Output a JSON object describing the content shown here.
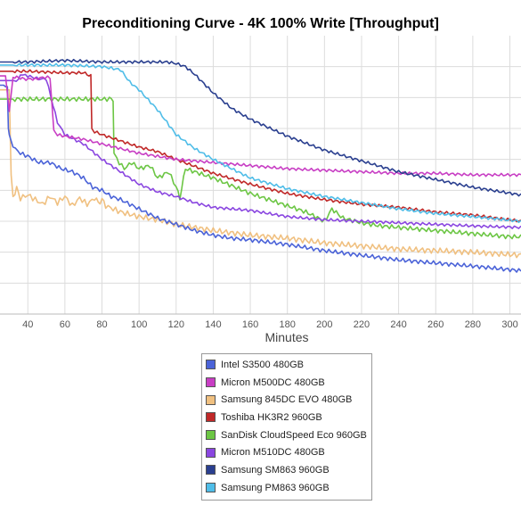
{
  "chart_data": {
    "type": "line",
    "title": "Preconditioning Curve - 4K 100% Write [Throughput]",
    "xlabel": "Minutes",
    "ylabel": "",
    "xlim": [
      25,
      306
    ],
    "ylim": [
      0,
      90000
    ],
    "x_ticks": [
      40,
      60,
      80,
      100,
      120,
      140,
      160,
      180,
      200,
      220,
      240,
      260,
      280,
      300
    ],
    "y_ticks": [
      10000,
      20000,
      30000,
      40000,
      50000,
      60000,
      70000,
      80000
    ],
    "grid": true,
    "legend_position": "bottom-center",
    "series": [
      {
        "name": "Intel S3500 480GB",
        "color": "#4b63d8",
        "x": [
          25,
          27,
          28,
          29,
          29.5,
          30,
          32,
          36,
          40,
          46,
          52,
          58,
          64,
          70,
          75,
          80,
          85,
          90,
          100,
          110,
          120,
          130,
          140,
          150,
          160,
          180,
          200,
          220,
          240,
          260,
          280,
          306
        ],
        "y": [
          74000,
          74000,
          73500,
          73500,
          60000,
          58000,
          54000,
          52000,
          51000,
          49000,
          49000,
          47000,
          46000,
          44000,
          41000,
          40000,
          38000,
          37000,
          34000,
          31000,
          29000,
          27000,
          25500,
          24500,
          24000,
          22500,
          20500,
          19000,
          17500,
          16500,
          15500,
          14000
        ]
      },
      {
        "name": "Micron M500DC 480GB",
        "color": "#c83ec4",
        "x": [
          25,
          28,
          30,
          32,
          35,
          38,
          40,
          44,
          48,
          52,
          54,
          56,
          60,
          70,
          80,
          90,
          100,
          110,
          120,
          140,
          160,
          180,
          200,
          220,
          240,
          260,
          280,
          306
        ],
        "y": [
          77000,
          77000,
          65500,
          76500,
          76500,
          76000,
          76000,
          76000,
          76500,
          76500,
          59500,
          58000,
          57500,
          56500,
          55000,
          53500,
          52000,
          51000,
          50000,
          49000,
          48000,
          47000,
          46500,
          46000,
          45500,
          45500,
          45000,
          45000
        ]
      },
      {
        "name": "Samsung 845DC EVO 480GB",
        "color": "#f0c080",
        "x": [
          25,
          28,
          30,
          31,
          32,
          34,
          36,
          40,
          44,
          48,
          52,
          56,
          60,
          64,
          68,
          72,
          76,
          78,
          80,
          82,
          86,
          90,
          100,
          110,
          120,
          140,
          160,
          180,
          200,
          220,
          240,
          260,
          280,
          306
        ],
        "y": [
          72500,
          72500,
          72500,
          45000,
          38000,
          40500,
          37500,
          38500,
          37000,
          35500,
          38000,
          36000,
          38000,
          35000,
          37500,
          35500,
          37500,
          36000,
          37000,
          35000,
          34000,
          33000,
          31500,
          30500,
          29000,
          27000,
          25500,
          24500,
          23000,
          22000,
          21000,
          20500,
          20000,
          19000
        ]
      },
      {
        "name": "Toshiba HK3R2 960GB",
        "color": "#c02828",
        "x": [
          25,
          40,
          60,
          70,
          72,
          74,
          74.5,
          76,
          80,
          90,
          100,
          110,
          120,
          140,
          160,
          180,
          200,
          220,
          240,
          260,
          280,
          306
        ],
        "y": [
          78500,
          78500,
          78000,
          78000,
          77500,
          77000,
          60000,
          59000,
          58000,
          56000,
          54000,
          52500,
          50000,
          45500,
          42000,
          39000,
          37000,
          35500,
          34500,
          33000,
          32000,
          30000
        ]
      },
      {
        "name": "SanDisk CloudSpeed Eco 960GB",
        "color": "#6cc644",
        "x": [
          25,
          40,
          60,
          70,
          80,
          84,
          86,
          86.5,
          88,
          92,
          96,
          100,
          106,
          110,
          116,
          120,
          122,
          125,
          130,
          140,
          150,
          160,
          170,
          180,
          190,
          200,
          204,
          210,
          220,
          230,
          240,
          250,
          260,
          280,
          300,
          306
        ],
        "y": [
          69500,
          69500,
          69500,
          69500,
          69500,
          69500,
          69500,
          52000,
          50000,
          47000,
          49000,
          47000,
          48000,
          44000,
          46000,
          41000,
          37500,
          47000,
          46000,
          44000,
          41500,
          39000,
          37000,
          35000,
          33000,
          30000,
          34000,
          31000,
          29500,
          28500,
          28000,
          27500,
          27000,
          26000,
          25000,
          25000
        ]
      },
      {
        "name": "Micron M510DC 480GB",
        "color": "#8a46e0",
        "x": [
          25,
          30,
          35,
          36,
          40,
          46,
          50,
          56,
          60,
          70,
          80,
          90,
          100,
          110,
          120,
          130,
          140,
          160,
          180,
          200,
          220,
          240,
          260,
          280,
          306
        ],
        "y": [
          75500,
          75500,
          75500,
          77500,
          77000,
          76000,
          76000,
          62000,
          58000,
          55000,
          50000,
          46000,
          42000,
          39500,
          38000,
          36000,
          34500,
          33500,
          31500,
          30500,
          30000,
          29500,
          29000,
          28500,
          28000
        ]
      },
      {
        "name": "Samsung SM863 960GB",
        "color": "#2a3f8f",
        "x": [
          25,
          40,
          60,
          80,
          100,
          110,
          115,
          120,
          125,
          130,
          140,
          150,
          160,
          180,
          200,
          220,
          240,
          260,
          280,
          306
        ],
        "y": [
          81500,
          81500,
          82000,
          81500,
          81500,
          81500,
          81500,
          81000,
          80000,
          77500,
          71500,
          66500,
          63000,
          57500,
          53000,
          49500,
          46000,
          43500,
          41000,
          38500
        ]
      },
      {
        "name": "Samsung PM863 960GB",
        "color": "#4fbde8",
        "x": [
          25,
          40,
          60,
          80,
          90,
          95,
          100,
          110,
          120,
          130,
          140,
          150,
          160,
          180,
          200,
          220,
          240,
          260,
          280,
          306
        ],
        "y": [
          80500,
          80500,
          80500,
          80000,
          79000,
          75000,
          72500,
          66000,
          58000,
          53500,
          50000,
          47000,
          44000,
          40500,
          38000,
          36000,
          34000,
          32500,
          31500,
          30000
        ]
      }
    ]
  }
}
